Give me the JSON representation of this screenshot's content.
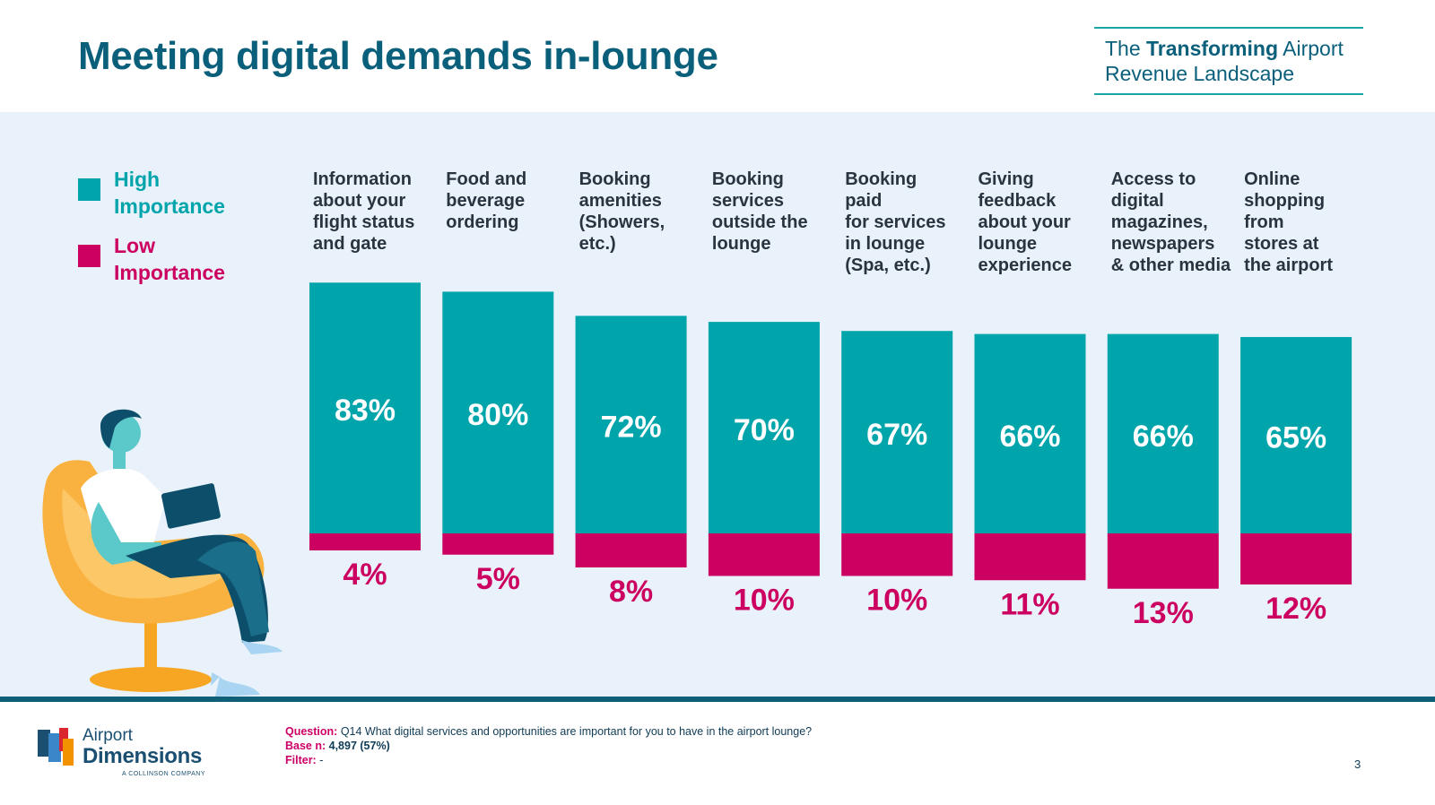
{
  "header": {
    "title": "Meeting digital demands in-lounge",
    "brand_line1_pre": "The ",
    "brand_line1_bold": "Transforming",
    "brand_line1_post": " Airport",
    "brand_line2": "Revenue Landscape"
  },
  "legend": {
    "high": {
      "label": "High Importance",
      "color": "#00a4ab"
    },
    "low": {
      "label": "Low Importance",
      "color": "#cc0060"
    }
  },
  "chart_data": {
    "type": "bar",
    "categories": [
      "Information about your flight status and gate",
      "Food and beverage ordering",
      "Booking amenities (Showers, etc.)",
      "Booking services outside the lounge",
      "Booking paid for services in lounge (Spa, etc.)",
      "Giving feedback about your lounge experience",
      "Access to digital magazines, newspapers & other media",
      "Online shopping from stores at the airport"
    ],
    "series": [
      {
        "name": "High Importance",
        "values": [
          83,
          80,
          72,
          70,
          67,
          66,
          66,
          65
        ],
        "labels": [
          "83%",
          "80%",
          "72%",
          "70%",
          "67%",
          "66%",
          "66%",
          "65%"
        ]
      },
      {
        "name": "Low Importance",
        "values": [
          4,
          5,
          8,
          10,
          10,
          11,
          13,
          12
        ],
        "labels": [
          "4%",
          "5%",
          "8%",
          "10%",
          "10%",
          "11%",
          "13%",
          "12%"
        ]
      }
    ],
    "category_label_lines": [
      [
        "Information",
        "about your",
        "flight status",
        "and gate"
      ],
      [
        "Food and",
        "beverage",
        "ordering"
      ],
      [
        "Booking",
        "amenities",
        "(Showers,",
        "etc.)"
      ],
      [
        "Booking",
        "services",
        "outside the",
        "lounge"
      ],
      [
        "Booking",
        "paid",
        "for services",
        "in lounge",
        "(Spa, etc.)"
      ],
      [
        "Giving",
        "feedback",
        "about your",
        "lounge",
        "experience"
      ],
      [
        "Access to",
        "digital",
        "magazines,",
        "newspapers",
        "& other media"
      ],
      [
        "Online",
        "shopping",
        "from",
        "stores at",
        "the airport"
      ]
    ],
    "colors": {
      "high": "#00a4ab",
      "low": "#cc0060"
    }
  },
  "footer": {
    "question_key": "Question:",
    "question_text": " Q14 What digital services and opportunities are important for you to have in the airport lounge?",
    "base_key": "Base n:",
    "base_text": " 4,897 (57%)",
    "filter_key": "Filter:",
    "filter_text": " -",
    "page_number": "3"
  },
  "logo": {
    "line1": "Airport",
    "line2": "Dimensions",
    "line3": "A COLLINSON COMPANY"
  }
}
